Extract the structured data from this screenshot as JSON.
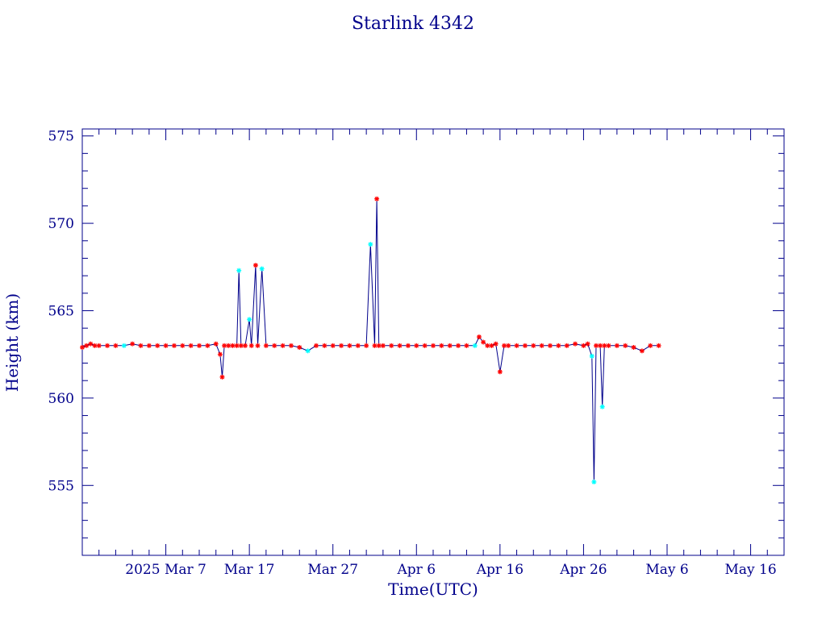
{
  "chart_data": {
    "type": "line",
    "title": "Starlink 4342",
    "xlabel": "Time(UTC)",
    "ylabel": "Height (km)",
    "xlim": [
      "2025-02-25",
      "2025-05-20"
    ],
    "ylim": [
      551.0,
      575.4
    ],
    "grid": false,
    "x_ticks": [
      {
        "date": "2025-03-07",
        "label": "2025 Mar  7"
      },
      {
        "date": "2025-03-17",
        "label": "Mar 17"
      },
      {
        "date": "2025-03-27",
        "label": "Mar 27"
      },
      {
        "date": "2025-04-06",
        "label": "Apr  6"
      },
      {
        "date": "2025-04-16",
        "label": "Apr 16"
      },
      {
        "date": "2025-04-26",
        "label": "Apr 26"
      },
      {
        "date": "2025-05-06",
        "label": "May  6"
      },
      {
        "date": "2025-05-16",
        "label": "May 16"
      }
    ],
    "y_ticks": [
      555,
      560,
      565,
      570,
      575
    ],
    "colors": {
      "axis": "#00008b",
      "line": "#00008b",
      "marker_primary": "#ff0000",
      "marker_secondary": "#00ffff"
    },
    "series": [
      {
        "values": [
          [
            "2025-02-25T00:00",
            562.9
          ],
          [
            "2025-02-25T12:00",
            563.0
          ],
          [
            "2025-02-26T00:00",
            563.1
          ],
          [
            "2025-02-26T12:00",
            563.0
          ],
          [
            "2025-02-27T00:00",
            563.0
          ],
          [
            "2025-02-28T00:00",
            563.0
          ],
          [
            "2025-03-01T00:00",
            563.0
          ],
          [
            "2025-03-02T00:00",
            563.0
          ],
          [
            "2025-03-03T00:00",
            563.1
          ],
          [
            "2025-03-04T00:00",
            563.0
          ],
          [
            "2025-03-05T00:00",
            563.0
          ],
          [
            "2025-03-06T00:00",
            563.0
          ],
          [
            "2025-03-07T00:00",
            563.0
          ],
          [
            "2025-03-08T00:00",
            563.0
          ],
          [
            "2025-03-09T00:00",
            563.0
          ],
          [
            "2025-03-10T00:00",
            563.0
          ],
          [
            "2025-03-11T00:00",
            563.0
          ],
          [
            "2025-03-12T00:00",
            563.0
          ],
          [
            "2025-03-13T00:00",
            563.1
          ],
          [
            "2025-03-13T12:00",
            562.5
          ],
          [
            "2025-03-13T18:00",
            561.2
          ],
          [
            "2025-03-14T00:00",
            563.0
          ],
          [
            "2025-03-14T12:00",
            563.0
          ],
          [
            "2025-03-15T00:00",
            563.0
          ],
          [
            "2025-03-15T12:00",
            563.0
          ],
          [
            "2025-03-15T18:00",
            567.3
          ],
          [
            "2025-03-16T00:00",
            563.0
          ],
          [
            "2025-03-16T12:00",
            563.0
          ],
          [
            "2025-03-17T00:00",
            564.5
          ],
          [
            "2025-03-17T06:00",
            563.0
          ],
          [
            "2025-03-17T18:00",
            567.6
          ],
          [
            "2025-03-18T00:00",
            563.0
          ],
          [
            "2025-03-18T12:00",
            567.4
          ],
          [
            "2025-03-19T00:00",
            563.0
          ],
          [
            "2025-03-20T00:00",
            563.0
          ],
          [
            "2025-03-21T00:00",
            563.0
          ],
          [
            "2025-03-22T00:00",
            563.0
          ],
          [
            "2025-03-23T00:00",
            562.9
          ],
          [
            "2025-03-24T00:00",
            562.7
          ],
          [
            "2025-03-25T00:00",
            563.0
          ],
          [
            "2025-03-26T00:00",
            563.0
          ],
          [
            "2025-03-27T00:00",
            563.0
          ],
          [
            "2025-03-28T00:00",
            563.0
          ],
          [
            "2025-03-29T00:00",
            563.0
          ],
          [
            "2025-03-30T00:00",
            563.0
          ],
          [
            "2025-03-31T00:00",
            563.0
          ],
          [
            "2025-03-31T12:00",
            568.8
          ],
          [
            "2025-04-01T00:00",
            563.0
          ],
          [
            "2025-04-01T06:00",
            571.4
          ],
          [
            "2025-04-01T12:00",
            563.0
          ],
          [
            "2025-04-02T00:00",
            563.0
          ],
          [
            "2025-04-03T00:00",
            563.0
          ],
          [
            "2025-04-04T00:00",
            563.0
          ],
          [
            "2025-04-05T00:00",
            563.0
          ],
          [
            "2025-04-06T00:00",
            563.0
          ],
          [
            "2025-04-07T00:00",
            563.0
          ],
          [
            "2025-04-08T00:00",
            563.0
          ],
          [
            "2025-04-09T00:00",
            563.0
          ],
          [
            "2025-04-10T00:00",
            563.0
          ],
          [
            "2025-04-11T00:00",
            563.0
          ],
          [
            "2025-04-12T00:00",
            563.0
          ],
          [
            "2025-04-13T00:00",
            563.0
          ],
          [
            "2025-04-13T12:00",
            563.5
          ],
          [
            "2025-04-14T00:00",
            563.2
          ],
          [
            "2025-04-14T12:00",
            563.0
          ],
          [
            "2025-04-15T00:00",
            563.0
          ],
          [
            "2025-04-15T12:00",
            563.1
          ],
          [
            "2025-04-16T00:00",
            561.5
          ],
          [
            "2025-04-16T12:00",
            563.0
          ],
          [
            "2025-04-17T00:00",
            563.0
          ],
          [
            "2025-04-18T00:00",
            563.0
          ],
          [
            "2025-04-19T00:00",
            563.0
          ],
          [
            "2025-04-20T00:00",
            563.0
          ],
          [
            "2025-04-21T00:00",
            563.0
          ],
          [
            "2025-04-22T00:00",
            563.0
          ],
          [
            "2025-04-23T00:00",
            563.0
          ],
          [
            "2025-04-24T00:00",
            563.0
          ],
          [
            "2025-04-25T00:00",
            563.1
          ],
          [
            "2025-04-26T00:00",
            563.0
          ],
          [
            "2025-04-26T12:00",
            563.1
          ],
          [
            "2025-04-27T00:00",
            562.4
          ],
          [
            "2025-04-27T06:00",
            555.2
          ],
          [
            "2025-04-27T12:00",
            563.0
          ],
          [
            "2025-04-28T00:00",
            563.0
          ],
          [
            "2025-04-28T06:00",
            559.5
          ],
          [
            "2025-04-28T12:00",
            563.0
          ],
          [
            "2025-04-29T00:00",
            563.0
          ],
          [
            "2025-04-30T00:00",
            563.0
          ],
          [
            "2025-05-01T00:00",
            563.0
          ],
          [
            "2025-05-02T00:00",
            562.9
          ],
          [
            "2025-05-03T00:00",
            562.7
          ],
          [
            "2025-05-04T00:00",
            563.0
          ],
          [
            "2025-05-05T00:00",
            563.0
          ]
        ],
        "secondary_marker_dates": [
          "2025-03-02T00:00",
          "2025-03-15T18:00",
          "2025-03-17T00:00",
          "2025-03-18T12:00",
          "2025-03-24T00:00",
          "2025-03-31T12:00",
          "2025-04-13T00:00",
          "2025-04-27T00:00",
          "2025-04-27T06:00",
          "2025-04-28T06:00"
        ]
      }
    ]
  }
}
